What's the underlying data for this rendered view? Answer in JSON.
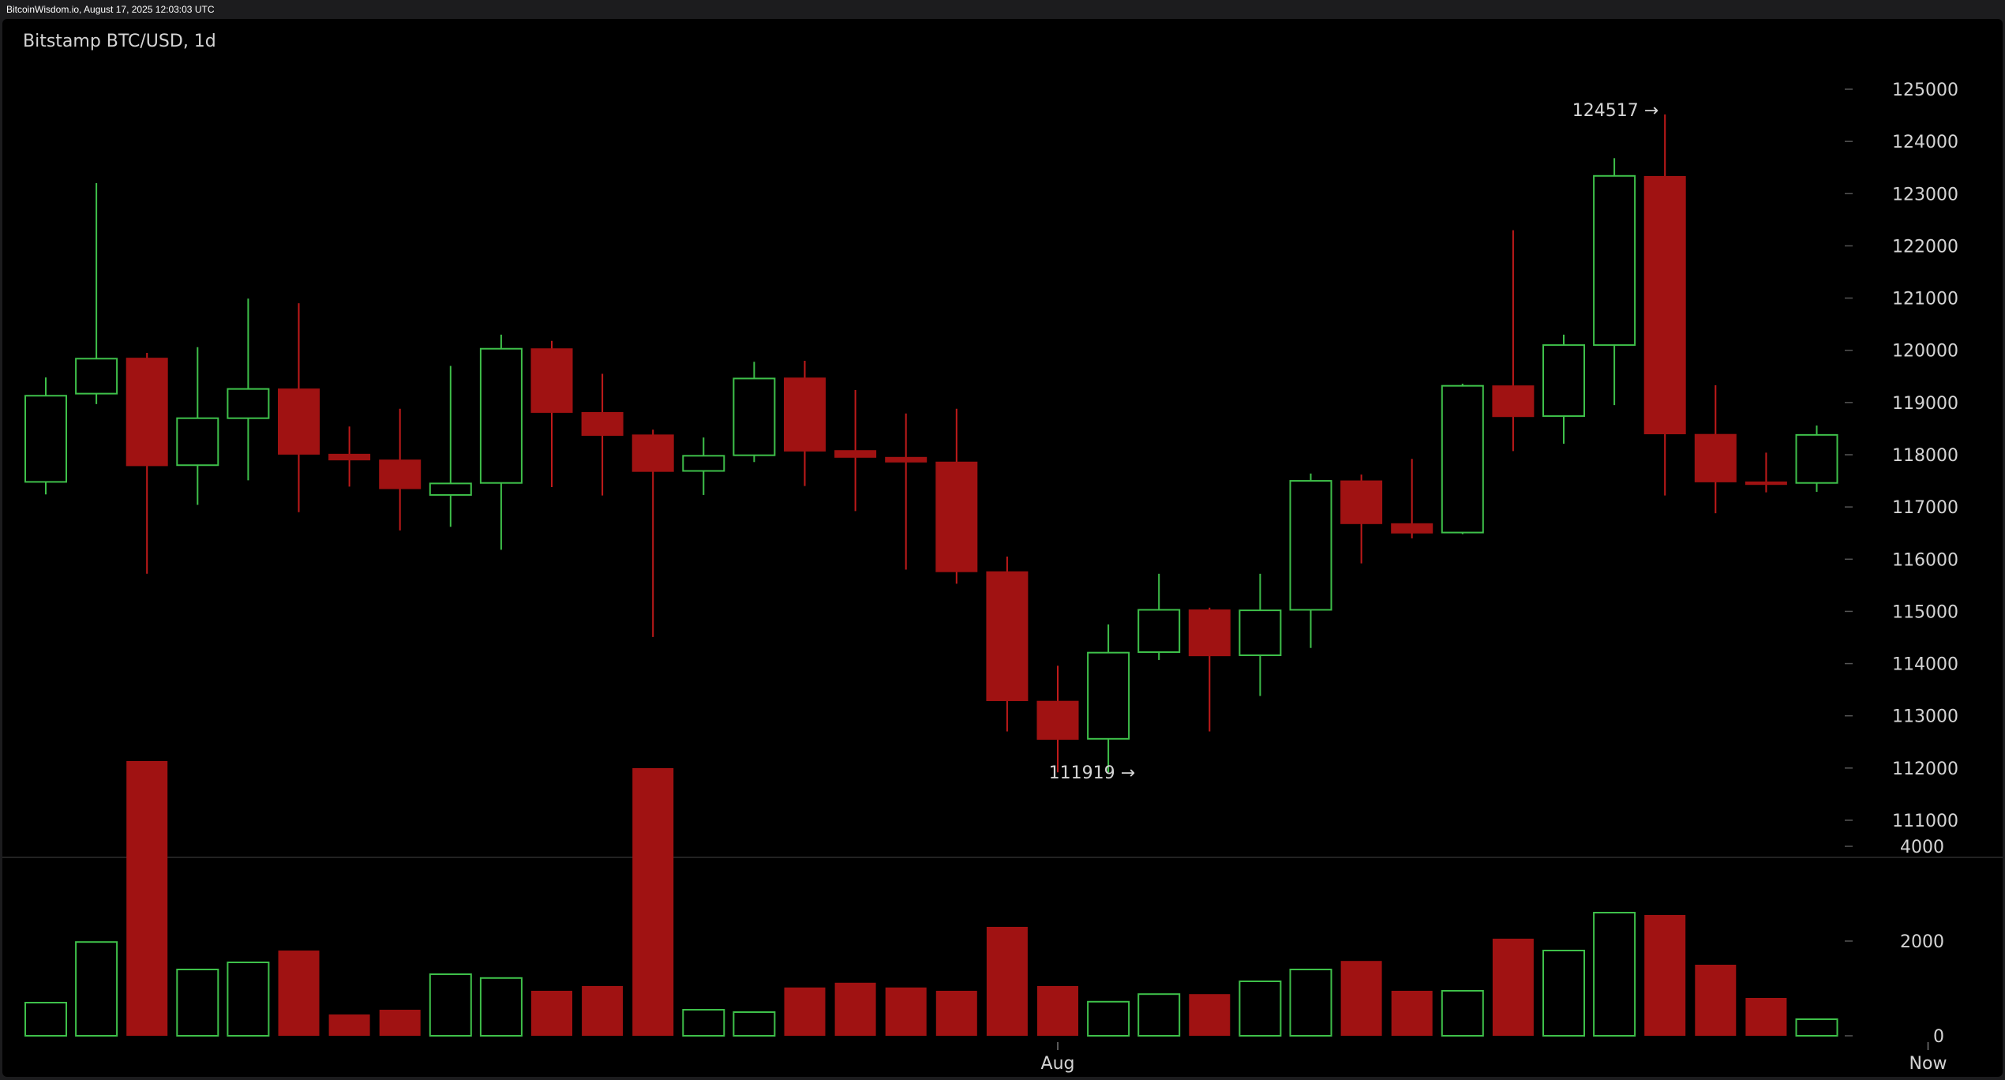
{
  "header": {
    "source_line": "BitcoinWisdom.io, August 17, 2025 12:03:03 UTC"
  },
  "colors": {
    "up": "#3ec04a",
    "down": "#a01212",
    "background": "#000000",
    "axis_text": "#d4d4d4",
    "divider": "#444444"
  },
  "chart_data": {
    "type": "candlestick",
    "title": "Bitstamp BTC/USD, 1d",
    "price_axis": {
      "ylim": [
        110300,
        125700
      ],
      "ticks": [
        111000,
        112000,
        113000,
        114000,
        115000,
        116000,
        117000,
        118000,
        119000,
        120000,
        121000,
        122000,
        123000,
        124000,
        125000
      ]
    },
    "volume_axis": {
      "ylim": [
        0,
        6500
      ],
      "ticks": [
        0,
        2000,
        4000
      ]
    },
    "x_labels": [
      {
        "label": "Aug",
        "index": 20
      },
      {
        "label": "Now",
        "index": 37.2
      }
    ],
    "annotations": [
      {
        "text": "124517 →",
        "index": 32,
        "price": 124517,
        "type": "high"
      },
      {
        "text": "111919 →",
        "index": 21,
        "price": 111919,
        "type": "low"
      }
    ],
    "candles": [
      {
        "o": 117480,
        "h": 119480,
        "l": 117240,
        "c": 119130,
        "v": 700
      },
      {
        "o": 119170,
        "h": 123200,
        "l": 118970,
        "c": 119840,
        "v": 1980
      },
      {
        "o": 119850,
        "h": 119950,
        "l": 115720,
        "c": 117790,
        "v": 5800
      },
      {
        "o": 117800,
        "h": 120060,
        "l": 117040,
        "c": 118700,
        "v": 1400
      },
      {
        "o": 118700,
        "h": 120990,
        "l": 117510,
        "c": 119260,
        "v": 1550
      },
      {
        "o": 119260,
        "h": 120900,
        "l": 116900,
        "c": 118010,
        "v": 1800
      },
      {
        "o": 118010,
        "h": 118540,
        "l": 117390,
        "c": 117900,
        "v": 450
      },
      {
        "o": 117900,
        "h": 118880,
        "l": 116550,
        "c": 117350,
        "v": 550
      },
      {
        "o": 117230,
        "h": 119700,
        "l": 116620,
        "c": 117450,
        "v": 1300
      },
      {
        "o": 117460,
        "h": 120300,
        "l": 116180,
        "c": 120030,
        "v": 1220
      },
      {
        "o": 120030,
        "h": 120180,
        "l": 117380,
        "c": 118810,
        "v": 950
      },
      {
        "o": 118810,
        "h": 119550,
        "l": 117220,
        "c": 118370,
        "v": 1050
      },
      {
        "o": 118380,
        "h": 118480,
        "l": 114510,
        "c": 117680,
        "v": 5650
      },
      {
        "o": 117690,
        "h": 118330,
        "l": 117230,
        "c": 117980,
        "v": 550
      },
      {
        "o": 117990,
        "h": 119780,
        "l": 117860,
        "c": 119460,
        "v": 500
      },
      {
        "o": 119470,
        "h": 119800,
        "l": 117400,
        "c": 118070,
        "v": 1020
      },
      {
        "o": 118080,
        "h": 119240,
        "l": 116920,
        "c": 117950,
        "v": 1120
      },
      {
        "o": 117950,
        "h": 118790,
        "l": 115800,
        "c": 117860,
        "v": 1020
      },
      {
        "o": 117860,
        "h": 118880,
        "l": 115530,
        "c": 115760,
        "v": 950
      },
      {
        "o": 115760,
        "h": 116050,
        "l": 112700,
        "c": 113290,
        "v": 2300
      },
      {
        "o": 113280,
        "h": 113960,
        "l": 111919,
        "c": 112550,
        "v": 1050
      },
      {
        "o": 112560,
        "h": 114750,
        "l": 111919,
        "c": 114210,
        "v": 720
      },
      {
        "o": 114220,
        "h": 115720,
        "l": 114070,
        "c": 115030,
        "v": 880
      },
      {
        "o": 115030,
        "h": 115070,
        "l": 112700,
        "c": 114150,
        "v": 880
      },
      {
        "o": 114160,
        "h": 115720,
        "l": 113380,
        "c": 115020,
        "v": 1150
      },
      {
        "o": 115030,
        "h": 117640,
        "l": 114300,
        "c": 117500,
        "v": 1400
      },
      {
        "o": 117500,
        "h": 117620,
        "l": 115920,
        "c": 116680,
        "v": 1580
      },
      {
        "o": 116680,
        "h": 117920,
        "l": 116400,
        "c": 116500,
        "v": 950
      },
      {
        "o": 116510,
        "h": 119360,
        "l": 116480,
        "c": 119320,
        "v": 950
      },
      {
        "o": 119320,
        "h": 122300,
        "l": 118070,
        "c": 118730,
        "v": 2050
      },
      {
        "o": 118740,
        "h": 120300,
        "l": 118210,
        "c": 120100,
        "v": 1800
      },
      {
        "o": 120100,
        "h": 123680,
        "l": 118950,
        "c": 123340,
        "v": 2600
      },
      {
        "o": 123330,
        "h": 124517,
        "l": 117220,
        "c": 118400,
        "v": 2550
      },
      {
        "o": 118390,
        "h": 119330,
        "l": 116880,
        "c": 117480,
        "v": 1500
      },
      {
        "o": 117480,
        "h": 118040,
        "l": 117280,
        "c": 117430,
        "v": 800
      },
      {
        "o": 117460,
        "h": 118560,
        "l": 117290,
        "c": 118380,
        "v": 350
      }
    ]
  }
}
